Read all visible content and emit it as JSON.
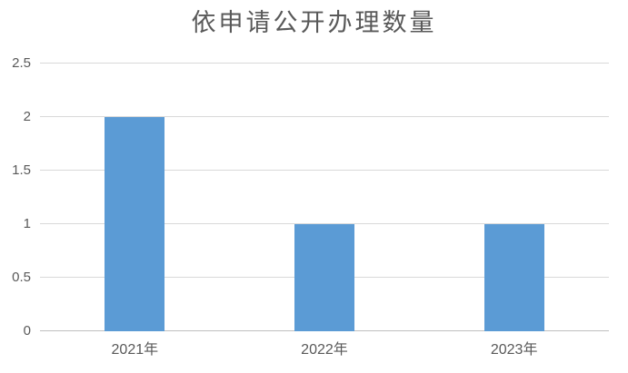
{
  "chart_data": {
    "type": "bar",
    "title": "依申请公开办理数量",
    "xlabel": "",
    "ylabel": "",
    "categories": [
      "2021年",
      "2022年",
      "2023年"
    ],
    "series": [
      {
        "name": "依申请公开办理数量",
        "values": [
          2,
          1,
          1
        ]
      }
    ],
    "values": [
      2,
      1,
      1
    ],
    "ylim": [
      0,
      2.5
    ],
    "yticks": [
      0,
      0.5,
      1,
      1.5,
      2,
      2.5
    ],
    "ytick_labels": [
      "0",
      "0.5",
      "1",
      "1.5",
      "2",
      "2.5"
    ],
    "grid": true,
    "legend_position": "none",
    "colors": {
      "bar": "#5B9BD5",
      "gridline": "#D9D9D9",
      "axis_line": "#BFBFBF",
      "label": "#595959",
      "title": "#595959",
      "background": "#FFFFFF"
    }
  }
}
